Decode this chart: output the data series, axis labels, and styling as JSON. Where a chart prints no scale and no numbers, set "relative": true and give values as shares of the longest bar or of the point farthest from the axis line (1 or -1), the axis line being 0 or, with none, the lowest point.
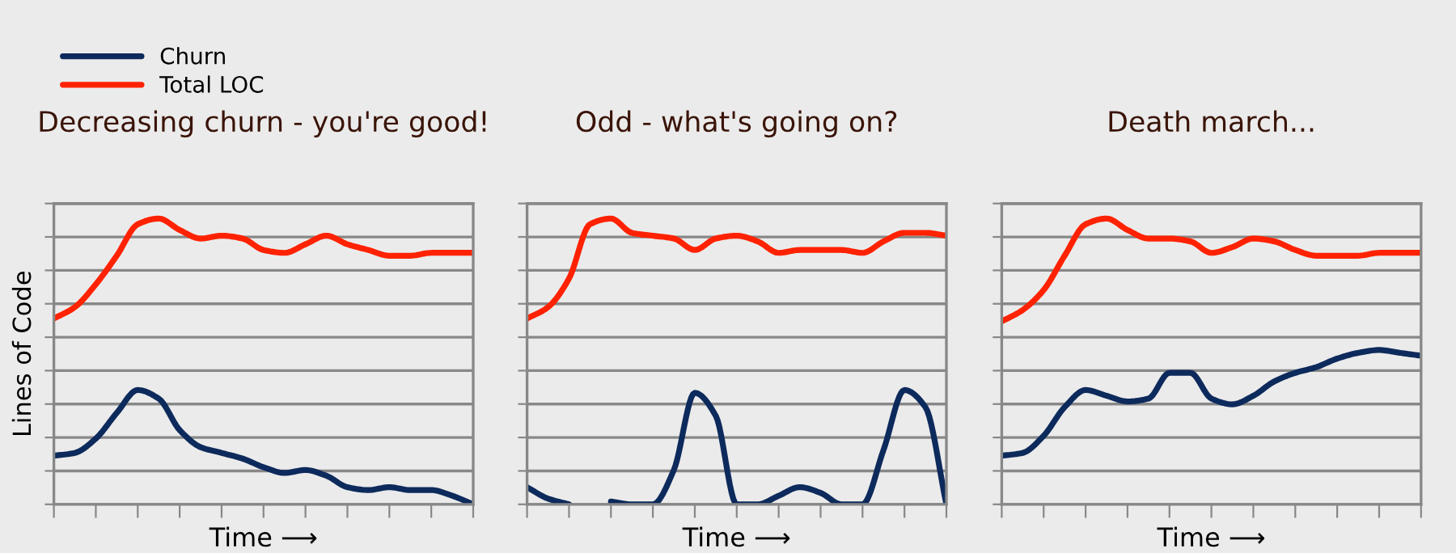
{
  "chart_data": [
    {
      "type": "line",
      "title": "Decreasing churn - you're good!",
      "xlabel": "Time ⟶",
      "ylabel": "Lines of Code",
      "relative": true,
      "grid": "y",
      "tick_labels": false,
      "legend": "top left",
      "marker": "none",
      "line_style": "solid",
      "categories": [
        null,
        null,
        null,
        null,
        null,
        null,
        null,
        null,
        null,
        null,
        null,
        null,
        null,
        null,
        null,
        null,
        null,
        null,
        null,
        null,
        null
      ],
      "series": [
        {
          "name": "Churn",
          "color": "#0d2a5c",
          "values": [
            0.17,
            0.18,
            0.23,
            0.32,
            0.4,
            0.37,
            0.26,
            0.2,
            0.18,
            0.16,
            0.13,
            0.11,
            0.12,
            0.1,
            0.06,
            0.05,
            0.06,
            0.05,
            0.05,
            0.03,
            0
          ]
        },
        {
          "name": "Total LOC",
          "color": "#ff2200",
          "values": [
            0.65,
            0.69,
            0.77,
            0.87,
            0.98,
            1,
            0.96,
            0.93,
            0.94,
            0.93,
            0.89,
            0.88,
            0.91,
            0.94,
            0.91,
            0.89,
            0.87,
            0.87,
            0.88,
            0.88,
            0.88
          ]
        }
      ]
    },
    {
      "type": "line",
      "title": "Odd - what's going on?",
      "xlabel": "Time ⟶",
      "relative": true,
      "grid": "y",
      "tick_labels": false,
      "marker": "none",
      "line_style": "solid",
      "categories": [
        null,
        null,
        null,
        null,
        null,
        null,
        null,
        null,
        null,
        null,
        null,
        null,
        null,
        null,
        null,
        null,
        null,
        null,
        null,
        null,
        null
      ],
      "series": [
        {
          "color": "#0d2a5c",
          "values": [
            0.06,
            0.02,
            0,
            null,
            0.01,
            0,
            0,
            0.12,
            0.39,
            0.31,
            0,
            0,
            0.03,
            0.06,
            0.04,
            0,
            0,
            0.19,
            0.4,
            0.34,
            0
          ]
        },
        {
          "color": "#ff2200",
          "values": [
            0.65,
            0.69,
            0.79,
            0.98,
            1,
            0.95,
            0.94,
            0.93,
            0.89,
            0.93,
            0.94,
            0.92,
            0.88,
            0.89,
            0.89,
            0.89,
            0.88,
            0.92,
            0.95,
            0.95,
            0.94
          ]
        }
      ]
    },
    {
      "type": "line",
      "title": "Death march...",
      "xlabel": "Time ⟶",
      "relative": true,
      "grid": "y",
      "tick_labels": false,
      "marker": "none",
      "line_style": "solid",
      "categories": [
        null,
        null,
        null,
        null,
        null,
        null,
        null,
        null,
        null,
        null,
        null,
        null,
        null,
        null,
        null,
        null,
        null,
        null,
        null,
        null,
        null
      ],
      "series": [
        {
          "color": "#0d2a5c",
          "values": [
            0.17,
            0.18,
            0.24,
            0.34,
            0.4,
            0.38,
            0.36,
            0.37,
            0.46,
            0.46,
            0.37,
            0.35,
            0.38,
            0.43,
            0.46,
            0.48,
            0.51,
            0.53,
            0.54,
            0.53,
            0.52
          ]
        },
        {
          "color": "#ff2200",
          "values": [
            0.64,
            0.68,
            0.75,
            0.87,
            0.98,
            1,
            0.96,
            0.93,
            0.93,
            0.92,
            0.88,
            0.9,
            0.93,
            0.92,
            0.89,
            0.87,
            0.87,
            0.87,
            0.88,
            0.88,
            0.88
          ]
        }
      ]
    }
  ]
}
